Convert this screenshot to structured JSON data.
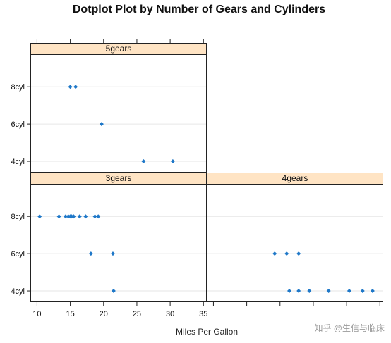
{
  "chart_data": {
    "type": "scatter",
    "title": "Dotplot Plot by Number of Gears and Cylinders",
    "xlabel": "Miles Per Gallon",
    "ylabel": "",
    "xlim": [
      9,
      35.5
    ],
    "xticks": [
      10,
      15,
      20,
      25,
      30,
      35
    ],
    "categories": [
      "4cyl",
      "6cyl",
      "8cyl"
    ],
    "gridlines": "horizontal",
    "marker_color": "#1f78c8",
    "strip_color": "#ffe4c4",
    "panels": [
      {
        "label": "5gears",
        "points": [
          {
            "cyl": "8cyl",
            "mpg": 15.0
          },
          {
            "cyl": "8cyl",
            "mpg": 15.8
          },
          {
            "cyl": "6cyl",
            "mpg": 19.7
          },
          {
            "cyl": "4cyl",
            "mpg": 26.0
          },
          {
            "cyl": "4cyl",
            "mpg": 30.4
          }
        ]
      },
      {
        "label": "3gears",
        "points": [
          {
            "cyl": "8cyl",
            "mpg": 10.4
          },
          {
            "cyl": "8cyl",
            "mpg": 13.3
          },
          {
            "cyl": "8cyl",
            "mpg": 14.3
          },
          {
            "cyl": "8cyl",
            "mpg": 14.7
          },
          {
            "cyl": "8cyl",
            "mpg": 15.0
          },
          {
            "cyl": "8cyl",
            "mpg": 15.2
          },
          {
            "cyl": "8cyl",
            "mpg": 15.5
          },
          {
            "cyl": "8cyl",
            "mpg": 16.4
          },
          {
            "cyl": "8cyl",
            "mpg": 17.3
          },
          {
            "cyl": "8cyl",
            "mpg": 18.7
          },
          {
            "cyl": "8cyl",
            "mpg": 19.2
          },
          {
            "cyl": "6cyl",
            "mpg": 18.1
          },
          {
            "cyl": "6cyl",
            "mpg": 21.4
          },
          {
            "cyl": "4cyl",
            "mpg": 21.5
          }
        ]
      },
      {
        "label": "4gears",
        "points": [
          {
            "cyl": "6cyl",
            "mpg": 19.2
          },
          {
            "cyl": "6cyl",
            "mpg": 21.0
          },
          {
            "cyl": "6cyl",
            "mpg": 22.8
          },
          {
            "cyl": "4cyl",
            "mpg": 21.4
          },
          {
            "cyl": "4cyl",
            "mpg": 22.8
          },
          {
            "cyl": "4cyl",
            "mpg": 24.4
          },
          {
            "cyl": "4cyl",
            "mpg": 27.3
          },
          {
            "cyl": "4cyl",
            "mpg": 30.4
          },
          {
            "cyl": "4cyl",
            "mpg": 32.4
          },
          {
            "cyl": "4cyl",
            "mpg": 33.9
          }
        ]
      }
    ]
  },
  "watermark": "知乎 @生信与临床"
}
